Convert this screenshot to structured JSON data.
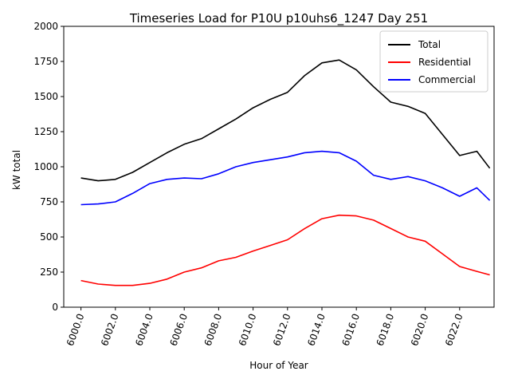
{
  "chart_data": {
    "type": "line",
    "title": "Timeseries Load for P10U p10uhs6_1247  Day 251",
    "xlabel": "Hour of Year",
    "ylabel": "kW total",
    "xlim": [
      5999.0,
      6024.0
    ],
    "ylim": [
      0,
      2000
    ],
    "xticks": [
      6000,
      6002,
      6004,
      6006,
      6008,
      6010,
      6012,
      6014,
      6016,
      6018,
      6020,
      6022
    ],
    "xtick_labels": [
      "6000.0",
      "6002.0",
      "6004.0",
      "6006.0",
      "6008.0",
      "6010.0",
      "6012.0",
      "6014.0",
      "6016.0",
      "6018.0",
      "6020.0",
      "6022.0"
    ],
    "yticks": [
      0,
      250,
      500,
      750,
      1000,
      1250,
      1500,
      1750,
      2000
    ],
    "ytick_labels": [
      "0",
      "250",
      "500",
      "750",
      "1000",
      "1250",
      "1500",
      "1750",
      "2000"
    ],
    "legend_position": "top-right",
    "x": [
      6000,
      6001,
      6002,
      6003,
      6004,
      6005,
      6006,
      6007,
      6008,
      6009,
      6010,
      6011,
      6012,
      6013,
      6014,
      6015,
      6016,
      6017,
      6018,
      6019,
      6020,
      6021,
      6022,
      6023,
      6023.75
    ],
    "series": [
      {
        "name": "Total",
        "color": "#000000",
        "values": [
          920,
          900,
          910,
          960,
          1030,
          1100,
          1160,
          1200,
          1270,
          1340,
          1420,
          1480,
          1530,
          1650,
          1740,
          1760,
          1690,
          1570,
          1460,
          1430,
          1380,
          1230,
          1080,
          1110,
          990
        ]
      },
      {
        "name": "Residential",
        "color": "#ff0000",
        "values": [
          190,
          165,
          155,
          155,
          170,
          200,
          250,
          280,
          330,
          355,
          400,
          440,
          480,
          560,
          630,
          655,
          650,
          620,
          560,
          500,
          470,
          380,
          290,
          255,
          230
        ]
      },
      {
        "name": "Commercial",
        "color": "#0000ff",
        "values": [
          730,
          735,
          750,
          810,
          880,
          910,
          920,
          915,
          950,
          1000,
          1030,
          1050,
          1070,
          1100,
          1110,
          1100,
          1040,
          940,
          910,
          930,
          900,
          850,
          790,
          850,
          760
        ]
      }
    ]
  }
}
